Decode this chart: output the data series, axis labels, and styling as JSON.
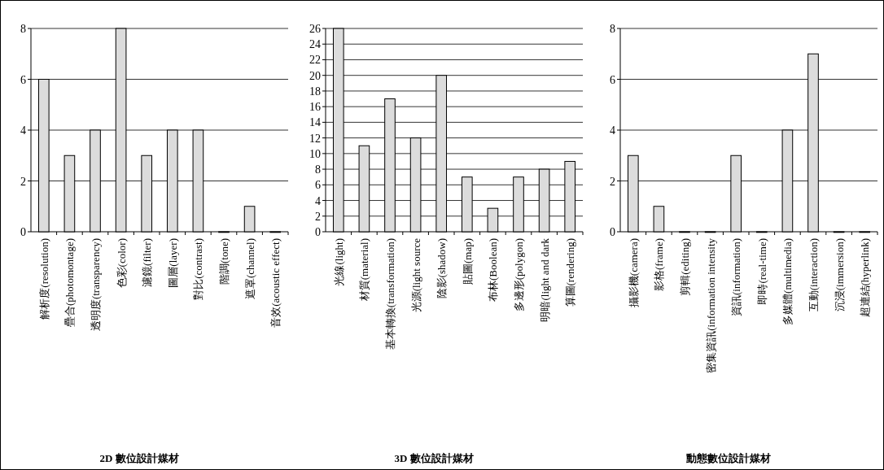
{
  "chart_data": [
    {
      "type": "bar",
      "title": "2D 數位設計媒材",
      "categories": [
        "解析度(resolution)",
        "疊合(photomontage)",
        "透明度(transparency)",
        "色彩(color)",
        "濾鏡(filter)",
        "圖層(layer)",
        "對比(contrast)",
        "階調(tone)",
        "遮罩(channel)",
        "音效(acoustic effect)"
      ],
      "values": [
        6,
        3,
        4,
        8,
        3,
        4,
        4,
        0,
        1,
        0
      ],
      "color": "#dcdcdc",
      "ylim": [
        0,
        8
      ],
      "yticks": [
        0,
        2,
        4,
        6,
        8
      ],
      "grid": "y"
    },
    {
      "type": "bar",
      "title": "3D 數位設計媒材",
      "categories": [
        "光線(light)",
        "材質(material)",
        "基本轉換(transformation)",
        "光源(light source",
        "陰影(shadow)",
        "貼圖(map)",
        "布林(Boolean)",
        "多邊形(polygon)",
        "明暗(light and dark",
        "算圖(rendering)"
      ],
      "values": [
        26,
        11,
        17,
        12,
        20,
        7,
        3,
        7,
        8,
        9
      ],
      "color": "#dcdcdc",
      "ylim": [
        0,
        26
      ],
      "yticks": [
        0,
        2,
        4,
        6,
        8,
        10,
        12,
        14,
        16,
        18,
        20,
        22,
        24,
        26
      ],
      "grid": "y"
    },
    {
      "type": "bar",
      "title": "動態數位設計媒材",
      "categories": [
        "攝影機(camera)",
        "影格(frame)",
        "剪輯(editing)",
        "密集資訊(information intensity",
        "資訊(information)",
        "即時(real-time)",
        "多媒體(multimedia)",
        "互動(interaction)",
        "沉浸(immersion)",
        "超連結(hyperlink)"
      ],
      "values": [
        3,
        1,
        0,
        0,
        3,
        0,
        4,
        7,
        0,
        0
      ],
      "color": "#dcdcdc",
      "ylim": [
        0,
        8
      ],
      "yticks": [
        0,
        2,
        4,
        6,
        8
      ],
      "grid": "y"
    }
  ]
}
